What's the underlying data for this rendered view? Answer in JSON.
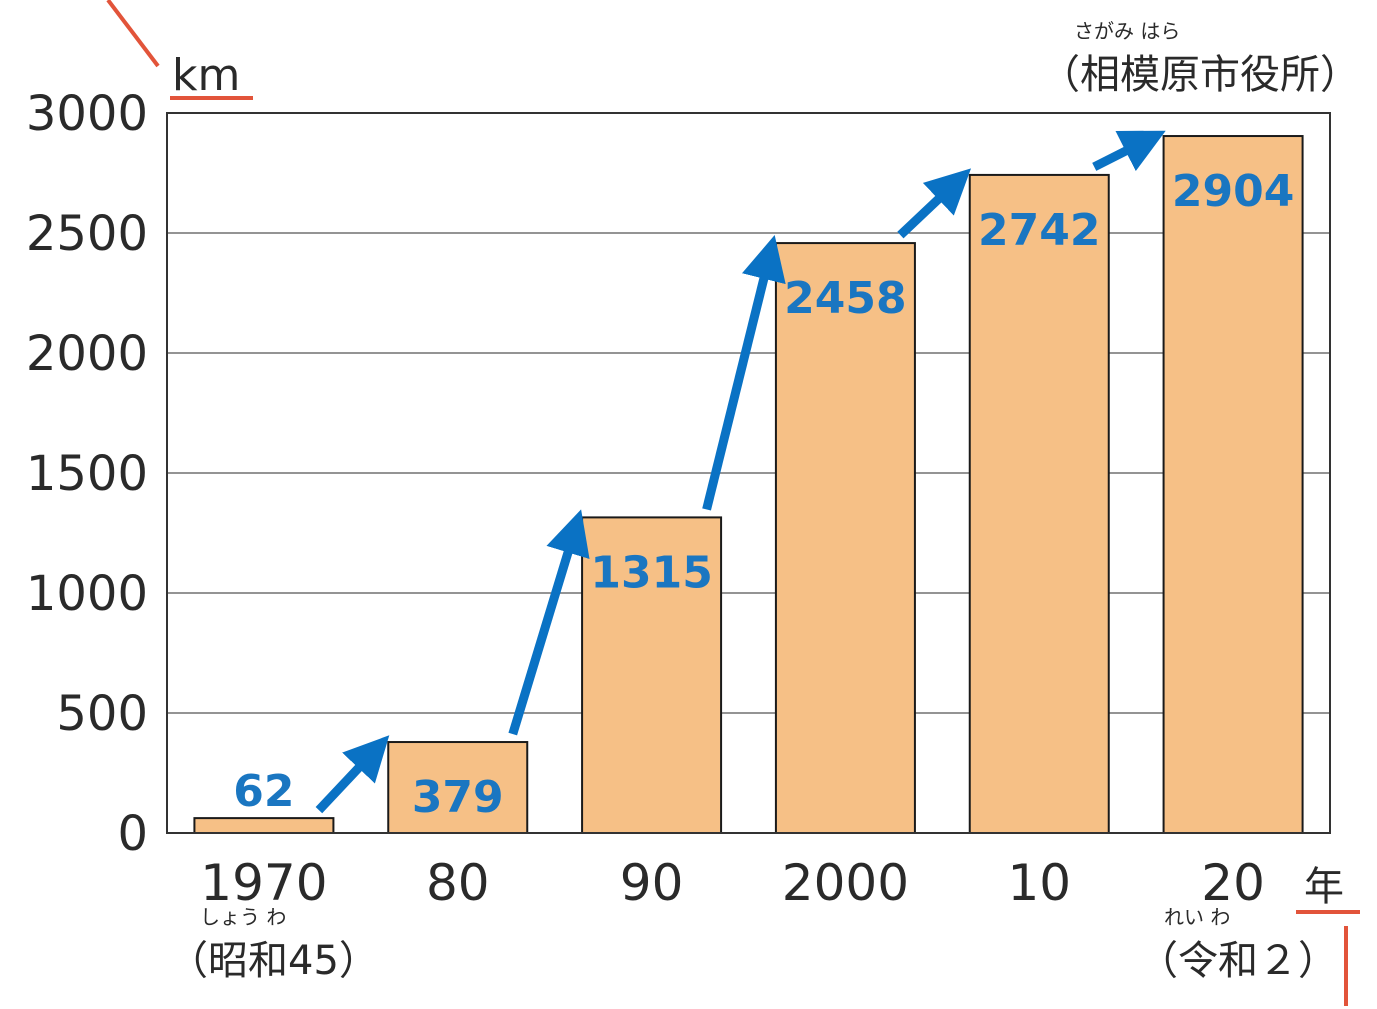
{
  "chart_data": {
    "type": "bar",
    "categories": [
      "1970",
      "80",
      "90",
      "2000",
      "10",
      "20"
    ],
    "values": [
      62,
      379,
      1315,
      2458,
      2742,
      2904
    ],
    "y_unit": "km",
    "x_unit": "年",
    "ylim": [
      0,
      3000
    ],
    "y_ticks": [
      "0",
      "500",
      "1000",
      "1500",
      "2000",
      "2500",
      "3000"
    ],
    "source": "（相模原市役所）",
    "source_ruby": "さがみ はら",
    "era_labels": [
      {
        "text": "（昭和45）",
        "ruby": "しょう わ"
      },
      {
        "text": "（令和２）",
        "ruby": "れい わ"
      }
    ],
    "grid": true,
    "bar_color": "#f6c086",
    "value_color": "#1a76c1",
    "arrow_color": "#0a72c4",
    "accent_color": "#e2543a"
  }
}
